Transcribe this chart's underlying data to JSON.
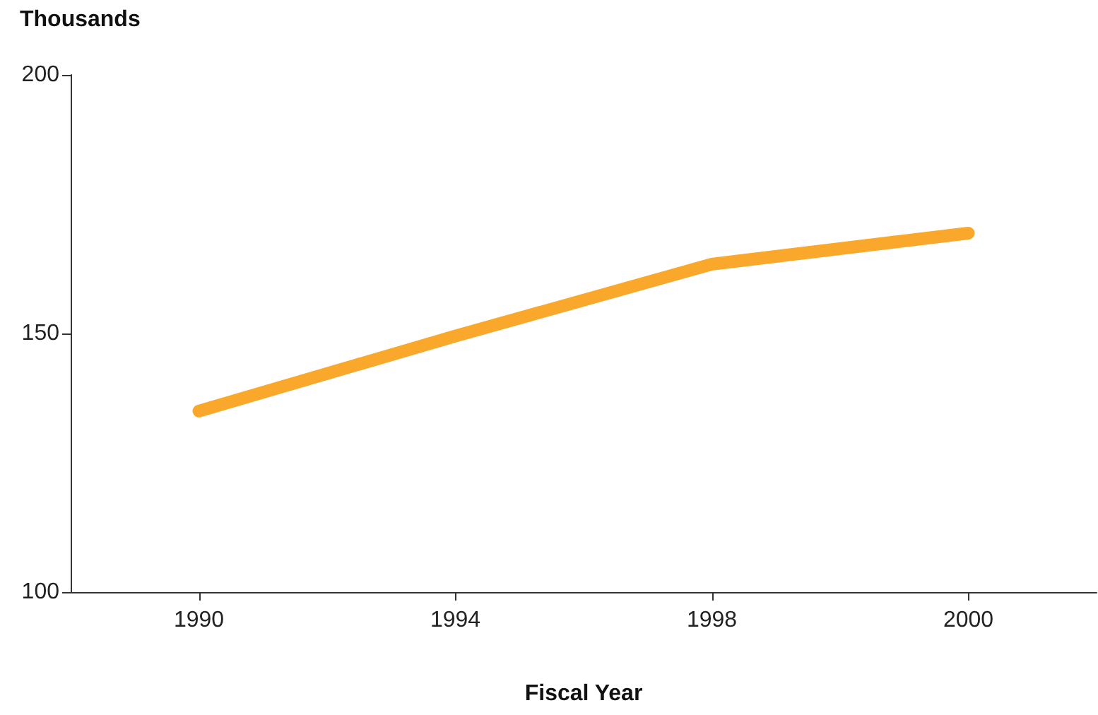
{
  "chart_data": {
    "type": "line",
    "ylabel": "Thousands",
    "xlabel": "Fiscal Year",
    "categories": [
      "1990",
      "1994",
      "1998",
      "2000"
    ],
    "series": [
      {
        "color": "#f9a82b",
        "values": [
          135,
          149.5,
          163.4,
          169.4
        ]
      }
    ],
    "ylim": [
      100,
      200
    ],
    "yticks": [
      100,
      150,
      200
    ],
    "grid": false,
    "line_style": "solid"
  }
}
